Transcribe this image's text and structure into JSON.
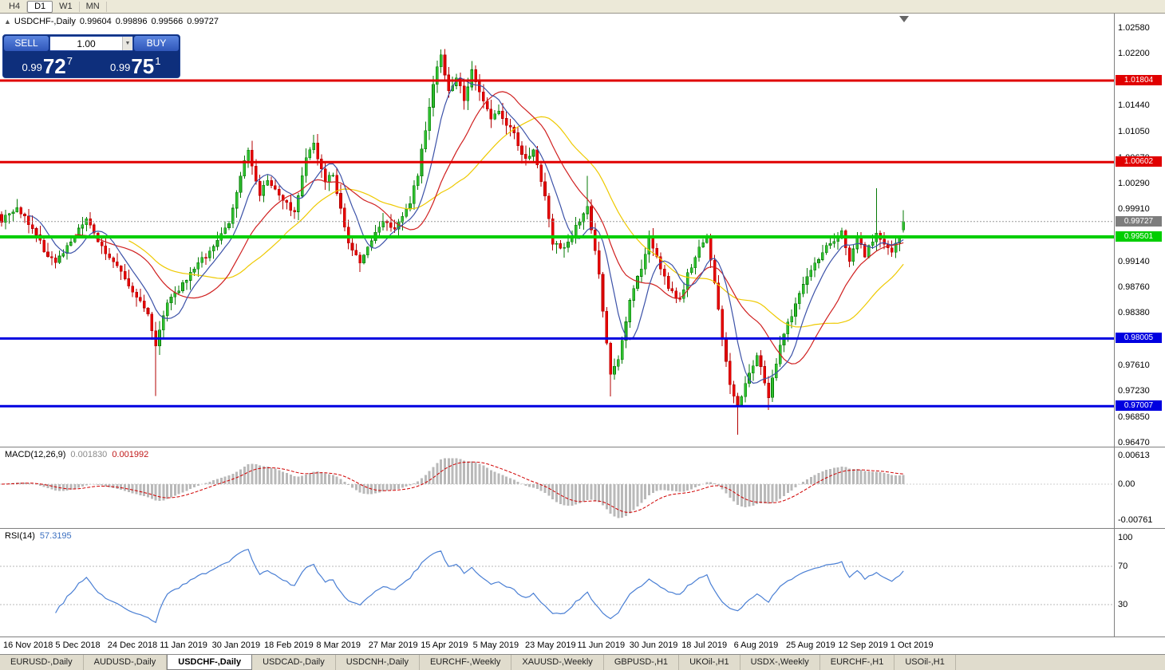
{
  "toolbar": {
    "periods": [
      {
        "label": "H4",
        "active": false
      },
      {
        "label": "D1",
        "active": true
      },
      {
        "label": "W1",
        "active": false
      },
      {
        "label": "MN",
        "active": false
      }
    ]
  },
  "chart": {
    "collapse_icon": "▲",
    "symbol_label": "USDCHF-,Daily",
    "ohlc": {
      "open": "0.99604",
      "high": "0.99896",
      "low": "0.99566",
      "close": "0.99727"
    }
  },
  "trade_panel": {
    "sell_label": "SELL",
    "buy_label": "BUY",
    "volume": "1.00",
    "dropdown_icon": "▼",
    "bid": {
      "prefix": "0.99",
      "big": "72",
      "sup": "7"
    },
    "ask": {
      "prefix": "0.99",
      "big": "75",
      "sup": "1"
    }
  },
  "price_axis": {
    "labels": [
      "1.02580",
      "1.02200",
      "1.01820",
      "1.01440",
      "1.01050",
      "1.00670",
      "1.00290",
      "0.99910",
      "0.99530",
      "0.99140",
      "0.98760",
      "0.98380",
      "0.98000",
      "0.97610",
      "0.97230",
      "0.96850",
      "0.96470"
    ]
  },
  "hlines": [
    {
      "label": "1.01804",
      "value": 1.01804,
      "color": "#e00000",
      "width": 3
    },
    {
      "label": "1.00602",
      "value": 1.00602,
      "color": "#e00000",
      "width": 3
    },
    {
      "label": "0.99501",
      "value": 0.99501,
      "color": "#00ce00",
      "width": 4
    },
    {
      "label": "0.98005",
      "value": 0.98005,
      "color": "#0000e0",
      "width": 3
    },
    {
      "label": "0.97007",
      "value": 0.97007,
      "color": "#0000e0",
      "width": 3
    }
  ],
  "current_price": {
    "label": "0.99727",
    "value": 0.99727,
    "color": "#7d7d7d"
  },
  "macd": {
    "title": "MACD(12,26,9)",
    "value1": "0.001830",
    "value2": "0.001992",
    "axis_labels": [
      "0.00613",
      "0.00",
      "-0.00761"
    ]
  },
  "rsi": {
    "title": "RSI(14)",
    "value": "57.3195",
    "axis_labels": [
      "100",
      "70",
      "30"
    ],
    "levels": [
      70,
      30
    ]
  },
  "date_axis": {
    "labels": [
      "16 Nov 2018",
      "5 Dec 2018",
      "24 Dec 2018",
      "11 Jan 2019",
      "30 Jan 2019",
      "18 Feb 2019",
      "8 Mar 2019",
      "27 Mar 2019",
      "15 Apr 2019",
      "5 May 2019",
      "23 May 2019",
      "11 Jun 2019",
      "30 Jun 2019",
      "18 Jul 2019",
      "6 Aug 2019",
      "25 Aug 2019",
      "12 Sep 2019",
      "1 Oct 2019"
    ]
  },
  "tabs": {
    "items": [
      {
        "label": "EURUSD-,Daily",
        "active": false
      },
      {
        "label": "AUDUSD-,Daily",
        "active": false
      },
      {
        "label": "USDCHF-,Daily",
        "active": true
      },
      {
        "label": "USDCAD-,Daily",
        "active": false
      },
      {
        "label": "USDCNH-,Daily",
        "active": false
      },
      {
        "label": "EURCHF-,Weekly",
        "active": false
      },
      {
        "label": "XAUUSD-,Weekly",
        "active": false
      },
      {
        "label": "GBPUSD-,H1",
        "active": false
      },
      {
        "label": "UKOil-,H1",
        "active": false
      },
      {
        "label": "USDX-,Weekly",
        "active": false
      },
      {
        "label": "EURCHF-,H1",
        "active": false
      },
      {
        "label": "USOil-,H1",
        "active": false
      }
    ]
  },
  "colors": {
    "candle_up_stroke": "#067a06",
    "candle_up_fill": "#2fbf2f",
    "candle_down_stroke": "#b30000",
    "candle_down_fill": "#e60000",
    "ma_fast": "#3c52a8",
    "ma_medium": "#d02020",
    "ma_slow": "#eec900",
    "macd_histogram": "#b9b9b9",
    "macd_signal": "#d00000",
    "rsi_line": "#4a7fd4"
  },
  "chart_data": {
    "type": "candlestick",
    "symbol": "USDCHF",
    "timeframe": "Daily",
    "candle_count": 235,
    "price_range": [
      0.9647,
      1.0258
    ],
    "visible_ohlc": {
      "open": 0.99604,
      "high": 0.99896,
      "low": 0.99566,
      "close": 0.99727
    },
    "horizontal_levels": [
      1.01804,
      1.00602,
      0.99501,
      0.98005,
      0.97007
    ],
    "close_path_anchors": [
      [
        0,
        0.9975
      ],
      [
        4,
        0.9992
      ],
      [
        8,
        0.9965
      ],
      [
        11,
        0.993
      ],
      [
        14,
        0.9912
      ],
      [
        19,
        0.9952
      ],
      [
        22,
        0.9975
      ],
      [
        26,
        0.9935
      ],
      [
        30,
        0.9905
      ],
      [
        34,
        0.9868
      ],
      [
        38,
        0.9838
      ],
      [
        40,
        0.9792
      ],
      [
        43,
        0.985
      ],
      [
        49,
        0.9896
      ],
      [
        54,
        0.993
      ],
      [
        59,
        0.9968
      ],
      [
        62,
        1.004
      ],
      [
        64,
        1.0078
      ],
      [
        67,
        1.0012
      ],
      [
        69,
        1.0036
      ],
      [
        72,
        1.0012
      ],
      [
        76,
        0.9986
      ],
      [
        79,
        1.0066
      ],
      [
        81,
        1.0086
      ],
      [
        84,
        1.0032
      ],
      [
        86,
        1.0044
      ],
      [
        88,
        0.9992
      ],
      [
        90,
        0.9938
      ],
      [
        93,
        0.9912
      ],
      [
        96,
        0.9946
      ],
      [
        99,
        0.9976
      ],
      [
        102,
        0.9962
      ],
      [
        106,
        1.0002
      ],
      [
        108,
        1.0042
      ],
      [
        110,
        1.011
      ],
      [
        112,
        1.0178
      ],
      [
        114,
        1.0218
      ],
      [
        116,
        1.0162
      ],
      [
        118,
        1.0186
      ],
      [
        120,
        1.0152
      ],
      [
        122,
        1.0198
      ],
      [
        124,
        1.0165
      ],
      [
        127,
        1.0122
      ],
      [
        129,
        1.0136
      ],
      [
        133,
        1.01
      ],
      [
        136,
        1.0062
      ],
      [
        138,
        1.0082
      ],
      [
        141,
        1.0012
      ],
      [
        143,
        0.9942
      ],
      [
        146,
        0.9932
      ],
      [
        149,
        0.9966
      ],
      [
        152,
        0.9996
      ],
      [
        155,
        0.9892
      ],
      [
        157,
        0.9792
      ],
      [
        158,
        0.9748
      ],
      [
        160,
        0.9772
      ],
      [
        163,
        0.9856
      ],
      [
        166,
        0.9906
      ],
      [
        168,
        0.9946
      ],
      [
        171,
        0.9906
      ],
      [
        173,
        0.9872
      ],
      [
        176,
        0.9856
      ],
      [
        178,
        0.9896
      ],
      [
        181,
        0.9932
      ],
      [
        183,
        0.995
      ],
      [
        185,
        0.9882
      ],
      [
        187,
        0.9802
      ],
      [
        189,
        0.9732
      ],
      [
        191,
        0.9702
      ],
      [
        194,
        0.9746
      ],
      [
        196,
        0.9776
      ],
      [
        198,
        0.9736
      ],
      [
        199,
        0.9716
      ],
      [
        202,
        0.9792
      ],
      [
        205,
        0.9836
      ],
      [
        207,
        0.987
      ],
      [
        210,
        0.99
      ],
      [
        212,
        0.992
      ],
      [
        215,
        0.994
      ],
      [
        218,
        0.9956
      ],
      [
        220,
        0.9912
      ],
      [
        222,
        0.995
      ],
      [
        224,
        0.9922
      ],
      [
        227,
        0.9958
      ],
      [
        229,
        0.9936
      ],
      [
        231,
        0.993
      ],
      [
        233,
        0.995
      ],
      [
        234,
        0.99727
      ]
    ],
    "wick_extremes": [
      {
        "i": 40,
        "low": 0.9716
      },
      {
        "i": 114,
        "high": 1.0226
      },
      {
        "i": 152,
        "high": 1.004
      },
      {
        "i": 158,
        "low": 0.9715
      },
      {
        "i": 191,
        "low": 0.9659
      },
      {
        "i": 199,
        "low": 0.9695
      },
      {
        "i": 227,
        "high": 1.0022
      }
    ],
    "indicators": {
      "macd": {
        "fast": 12,
        "slow": 26,
        "signal": 9,
        "current_main": 0.00183,
        "current_signal": 0.001992
      },
      "rsi": {
        "period": 14,
        "current": 57.3195,
        "levels": [
          70,
          30
        ]
      }
    }
  }
}
